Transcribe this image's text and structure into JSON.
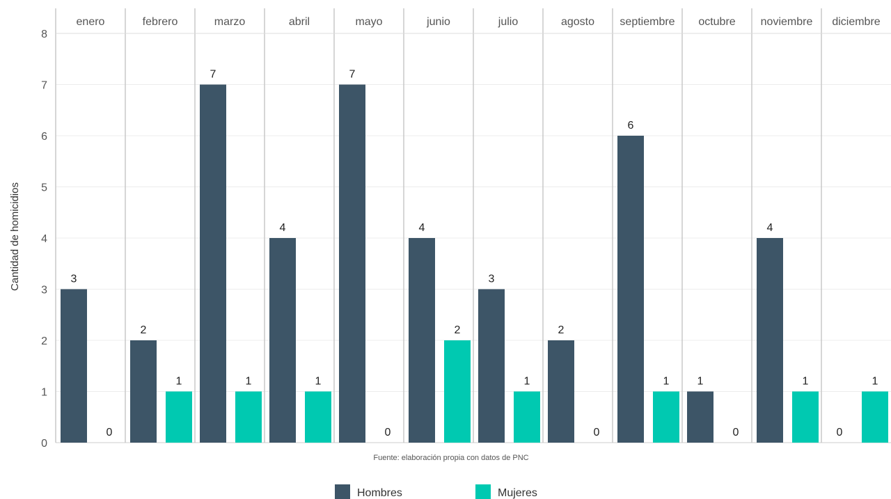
{
  "chart_data": {
    "type": "bar",
    "categories": [
      "enero",
      "febrero",
      "marzo",
      "abril",
      "mayo",
      "junio",
      "julio",
      "agosto",
      "septiembre",
      "octubre",
      "noviembre",
      "diciembre"
    ],
    "series": [
      {
        "name": "Hombres",
        "color": "#3d5567",
        "values": [
          3,
          2,
          7,
          4,
          7,
          4,
          3,
          2,
          6,
          1,
          4,
          0
        ]
      },
      {
        "name": "Mujeres",
        "color": "#00c9b1",
        "values": [
          0,
          1,
          1,
          1,
          0,
          2,
          1,
          0,
          1,
          0,
          1,
          1
        ]
      }
    ],
    "ylabel": "Cantidad de homicidios",
    "ylim": [
      0,
      8
    ],
    "yticks": [
      0,
      1,
      2,
      3,
      4,
      5,
      6,
      7,
      8
    ],
    "grid": true,
    "legend_position": "bottom",
    "source": "Fuente: elaboración propia con datos de PNC"
  }
}
